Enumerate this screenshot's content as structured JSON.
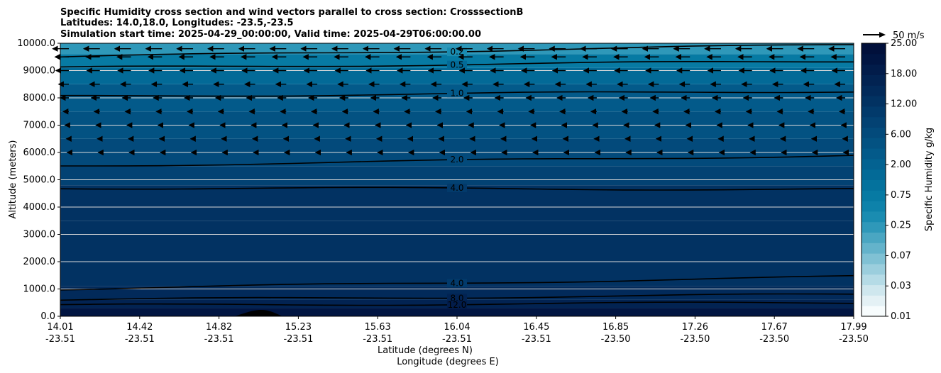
{
  "chart_data": {
    "type": "heatmap",
    "title_lines": [
      "Specific Humidity cross section and wind vectors parallel to cross section: CrosssectionB",
      "Latitudes: 14.0,18.0, Longitudes: -23.5,-23.5",
      "Simulation start time: 2025-04-29_00:00:00, Valid time: 2025-04-29T06:00:00.00"
    ],
    "ylabel": "Altitude (meters)",
    "xlabel_lines": [
      "Latitude (degrees N)",
      "Longitude (degrees E)"
    ],
    "ylim": [
      0,
      10000
    ],
    "y_ticks": [
      "0.0",
      "1000.0",
      "2000.0",
      "3000.0",
      "4000.0",
      "5000.0",
      "6000.0",
      "7000.0",
      "8000.0",
      "9000.0",
      "10000.0"
    ],
    "x_ticks": [
      {
        "lat": "14.01",
        "lon": "-23.51"
      },
      {
        "lat": "14.42",
        "lon": "-23.51"
      },
      {
        "lat": "14.82",
        "lon": "-23.51"
      },
      {
        "lat": "15.23",
        "lon": "-23.51"
      },
      {
        "lat": "15.63",
        "lon": "-23.51"
      },
      {
        "lat": "16.04",
        "lon": "-23.51"
      },
      {
        "lat": "16.45",
        "lon": "-23.51"
      },
      {
        "lat": "16.85",
        "lon": "-23.50"
      },
      {
        "lat": "17.26",
        "lon": "-23.50"
      },
      {
        "lat": "17.67",
        "lon": "-23.50"
      },
      {
        "lat": "17.99",
        "lon": "-23.50"
      }
    ],
    "grid": "horizontal",
    "colorbar": {
      "label": "Specific Humidity g/kg",
      "tick_labels": [
        "0.01",
        "0.03",
        "0.07",
        "0.25",
        "0.75",
        "2.00",
        "6.00",
        "12.00",
        "18.00",
        "25.00"
      ],
      "colors": [
        "#f7fcfd",
        "#e4f1f5",
        "#cfe7ee",
        "#b5dbe6",
        "#9bcedd",
        "#80c1d4",
        "#64b3cb",
        "#4aa6c2",
        "#2f98b9",
        "#1a8cb1",
        "#0e82aa",
        "#077aa3",
        "#04729d",
        "#036a97",
        "#036291",
        "#035a8a",
        "#035282",
        "#034a7b",
        "#034273",
        "#023a6b",
        "#023262",
        "#022a5a",
        "#022352",
        "#021c4a",
        "#011542",
        "#01103b"
      ]
    },
    "humidity_bands": [
      {
        "alt_bottom": 0,
        "alt_top": 300,
        "value": 14.0
      },
      {
        "alt_bottom": 300,
        "alt_top": 600,
        "value": 10.0
      },
      {
        "alt_bottom": 600,
        "alt_top": 1100,
        "value": 7.0
      },
      {
        "alt_bottom": 1100,
        "alt_top": 2000,
        "value": 5.0
      },
      {
        "alt_bottom": 2000,
        "alt_top": 3500,
        "value": 4.6
      },
      {
        "alt_bottom": 3500,
        "alt_top": 4800,
        "value": 4.2
      },
      {
        "alt_bottom": 4800,
        "alt_top": 5500,
        "value": 3.0
      },
      {
        "alt_bottom": 5500,
        "alt_top": 6500,
        "value": 1.8
      },
      {
        "alt_bottom": 6500,
        "alt_top": 7500,
        "value": 1.4
      },
      {
        "alt_bottom": 7500,
        "alt_top": 8500,
        "value": 1.1
      },
      {
        "alt_bottom": 8500,
        "alt_top": 9100,
        "value": 0.6
      },
      {
        "alt_bottom": 9100,
        "alt_top": 9600,
        "value": 0.35
      },
      {
        "alt_bottom": 9600,
        "alt_top": 10000,
        "value": 0.15
      }
    ],
    "contours": [
      {
        "level": 0.2,
        "label": "0.2",
        "alt_left": 9500,
        "alt_right": 9950
      },
      {
        "level": 0.5,
        "label": "0.5",
        "alt_left": 9100,
        "alt_right": 9350
      },
      {
        "level": 1.0,
        "label": "1.0",
        "alt_left": 8050,
        "alt_right": 8250
      },
      {
        "level": 2.0,
        "label": "2.0",
        "alt_left": 5500,
        "alt_right": 5900
      },
      {
        "level": 4.0,
        "label": "4.0",
        "alt_left": 4700,
        "alt_right": 4650
      },
      {
        "level": 4.0,
        "label": "4.0",
        "alt_left": 1000,
        "alt_right": 1450
      },
      {
        "level": 8.0,
        "label": "8.0",
        "alt_left": 600,
        "alt_right": 800
      },
      {
        "level": 12.0,
        "label": "12.0",
        "alt_left": 400,
        "alt_right": 500
      }
    ],
    "wind_reference": {
      "label": "50 m/s",
      "speed_ms": 50
    },
    "wind_rows": [
      {
        "alt": 9800,
        "u_ms": -35
      },
      {
        "alt": 9500,
        "u_ms": -30
      },
      {
        "alt": 9000,
        "u_ms": -28
      },
      {
        "alt": 8500,
        "u_ms": -22
      },
      {
        "alt": 8000,
        "u_ms": -18
      },
      {
        "alt": 7500,
        "u_ms": -12
      },
      {
        "alt": 7000,
        "u_ms": -8
      },
      {
        "alt": 6500,
        "u_ms": -5
      },
      {
        "alt": 6000,
        "u_ms": -3
      }
    ]
  }
}
